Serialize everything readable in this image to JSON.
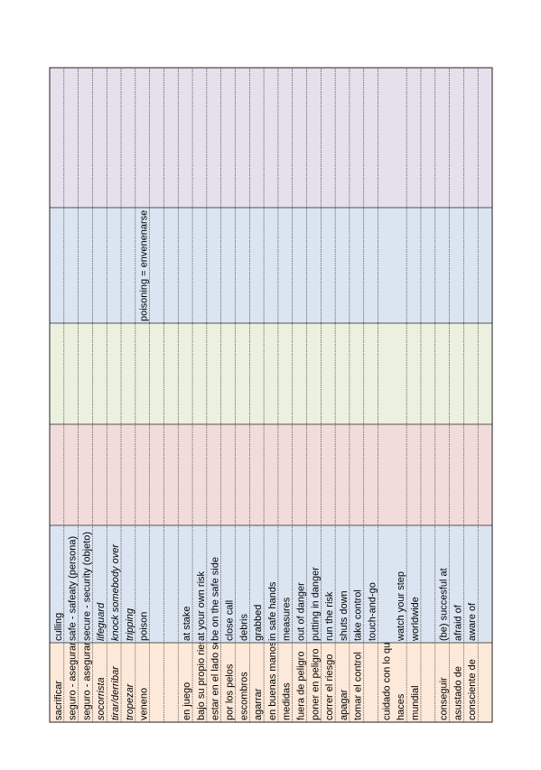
{
  "table": {
    "rows": [
      {
        "spanish": "sacrificar",
        "english": "culling"
      },
      {
        "spanish": "seguro - asegurar",
        "english": "safe - safeaty (persona)"
      },
      {
        "spanish": "seguro - asegurar",
        "english": "secure - security (objeto)"
      },
      {
        "spanish": "socorrista",
        "english": "lifeguard",
        "style": "italic"
      },
      {
        "spanish": "tirar/derribar",
        "english": "knock somebody over",
        "style": "italic"
      },
      {
        "spanish": "tropezar",
        "english": "tripping",
        "style": "italic"
      },
      {
        "spanish": "veneno",
        "english": "poison",
        "note": "poisoning = envenenarse"
      },
      {},
      {},
      {
        "spanish": "en juego",
        "english": "at stake"
      },
      {
        "spanish": "bajo su propio riesgo",
        "english": "at your own risk"
      },
      {
        "spanish": "estar en el lado seguro",
        "english": "be on the safe side"
      },
      {
        "spanish": "por los pelos",
        "english": "close call"
      },
      {
        "spanish": "escombros",
        "english": "debris"
      },
      {
        "spanish": "agarrar",
        "english": "grabbed"
      },
      {
        "spanish": "en buenas manos",
        "english": "in safe hands"
      },
      {
        "spanish": "medidas",
        "english": "measures"
      },
      {
        "spanish": "fuera de peligro",
        "english": "out of danger"
      },
      {
        "spanish": "poner en peligro",
        "english": "putting in danger"
      },
      {
        "spanish": "correr el riesgo",
        "english": "run the risk"
      },
      {
        "spanish": "apagar",
        "english": "shuts down"
      },
      {
        "spanish": "tomar el control",
        "english": "take control"
      },
      {
        "english": "touch-and-go"
      },
      {
        "spanish": [
          "cuidado con lo que",
          "haces"
        ],
        "english": "watch your step"
      },
      {
        "spanish": "mundial",
        "english": "worldwide"
      },
      {},
      {
        "spanish": "conseguir",
        "english": "(be) succesful at"
      },
      {
        "spanish": "asustado de",
        "english": "afraid of"
      },
      {
        "spanish": "consciente de",
        "english": "aware of"
      },
      {}
    ]
  }
}
